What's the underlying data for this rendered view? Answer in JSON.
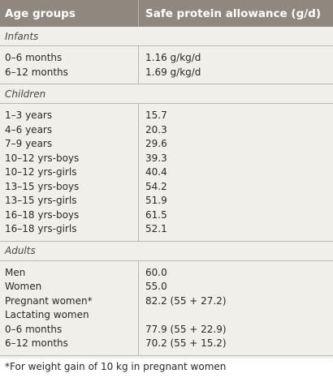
{
  "header": {
    "col1": "Age groups",
    "col2": "Safe protein allowance (g/d)"
  },
  "sections": [
    {
      "title": "Infants",
      "rows": [
        {
          "group": "0–6 months",
          "value": "1.16 g/kg/d"
        },
        {
          "group": "6–12 months",
          "value": "1.69 g/kg/d"
        }
      ]
    },
    {
      "title": "Children",
      "rows": [
        {
          "group": "1–3 years",
          "value": "15.7"
        },
        {
          "group": "4–6 years",
          "value": "20.3"
        },
        {
          "group": "7–9 years",
          "value": "29.6"
        },
        {
          "group": "10–12 yrs-boys",
          "value": "39.3"
        },
        {
          "group": "10–12 yrs-girls",
          "value": "40.4"
        },
        {
          "group": "13–15 yrs-boys",
          "value": "54.2"
        },
        {
          "group": "13–15 yrs-girls",
          "value": "51.9"
        },
        {
          "group": "16–18 yrs-boys",
          "value": "61.5"
        },
        {
          "group": "16–18 yrs-girls",
          "value": "52.1"
        }
      ]
    },
    {
      "title": "Adults",
      "rows": [
        {
          "group": "Men",
          "value": "60.0"
        },
        {
          "group": "Women",
          "value": "55.0"
        },
        {
          "group": "Pregnant women*",
          "value": "82.2 (55 + 27.2)"
        },
        {
          "group": "Lactating women",
          "value": ""
        },
        {
          "group": "0–6 months",
          "value": "77.9 (55 + 22.9)"
        },
        {
          "group": "6–12 months",
          "value": "70.2 (55 + 15.2)"
        }
      ]
    }
  ],
  "footnote": "*For weight gain of 10 kg in pregnant women",
  "colors": {
    "header_bg": "#90887f",
    "body_bg": "#f1efe9",
    "rule": "#bdb7ae"
  }
}
